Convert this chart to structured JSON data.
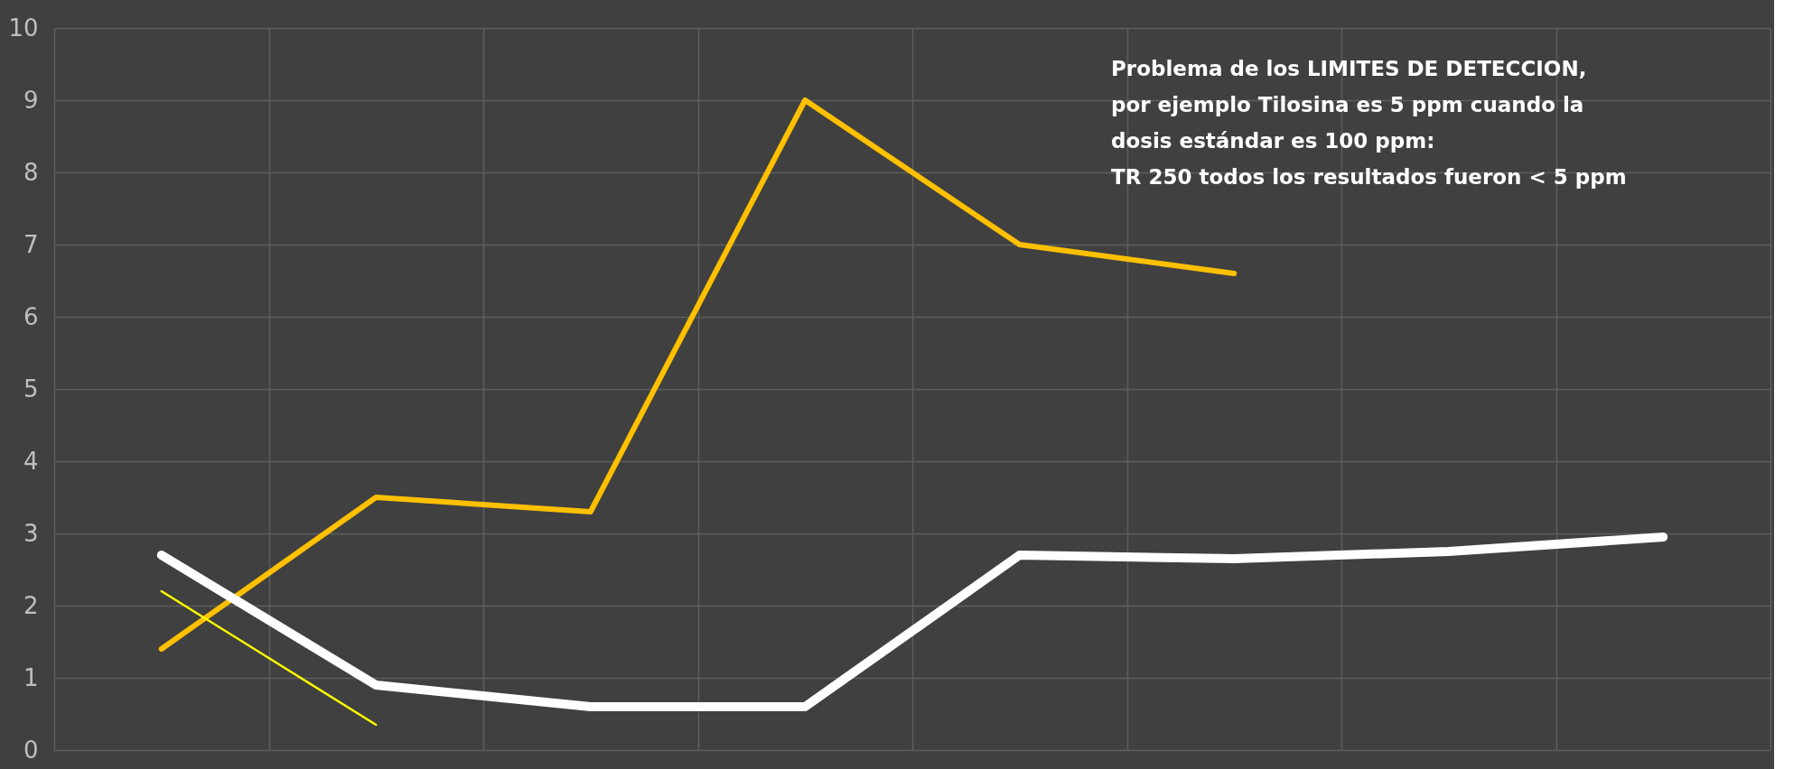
{
  "chart_data": {
    "type": "line",
    "categories": [
      null,
      null,
      null,
      null,
      null,
      null,
      null,
      null
    ],
    "series": [
      {
        "color": "#ffc000",
        "values": [
          1.4,
          3.5,
          3.3,
          9.0,
          7.0,
          6.6,
          null,
          null
        ]
      },
      {
        "color": "#ffffff",
        "values": [
          2.7,
          0.9,
          0.6,
          0.6,
          2.7,
          2.65,
          2.75,
          2.95
        ]
      },
      {
        "color": "#ffff00",
        "values": [
          2.2,
          0.35,
          null,
          null,
          null,
          null,
          null,
          null
        ]
      }
    ],
    "ylim": [
      0,
      10
    ],
    "yticks": [
      0,
      1,
      2,
      3,
      4,
      5,
      6,
      7,
      8,
      9,
      10
    ],
    "grid": true,
    "tick_labels": "y",
    "marker": "none",
    "line_style": "solid",
    "annotations": [
      "Problema de los LIMITES DE DETECCION,\npor ejemplo Tilosina es 5 ppm cuando la\ndosis estándar es 100 ppm:\nTR 250 todos los resultados fueron < 5 ppm"
    ]
  }
}
